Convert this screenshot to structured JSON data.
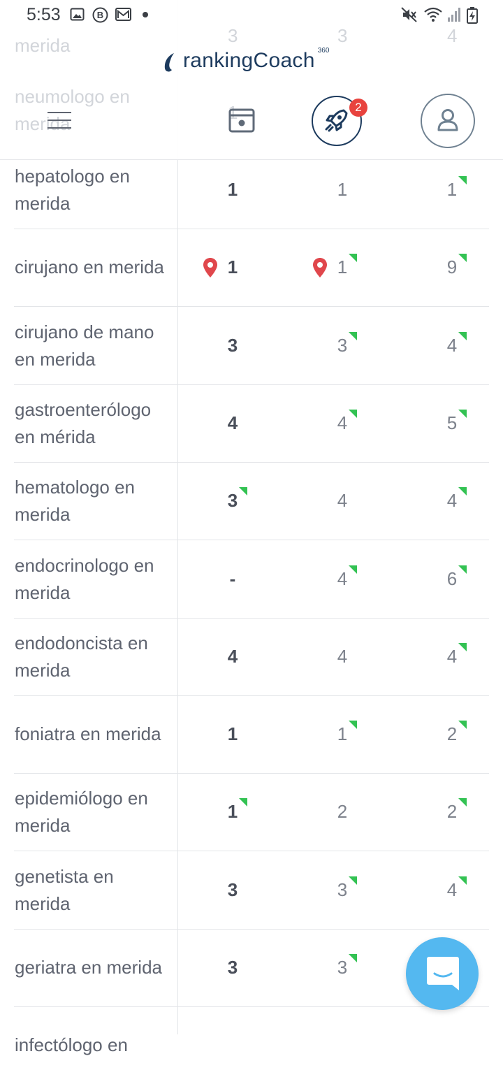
{
  "status_bar": {
    "time": "5:53"
  },
  "header": {
    "logo_text": "rankingCoach",
    "logo_sup": "360",
    "notification_count": "2"
  },
  "ghost_rows": [
    {
      "keyword": "merida",
      "c1": "3",
      "c2": "3",
      "c3": "4"
    },
    {
      "keyword": "neumologo en",
      "keyword2": "merida",
      "c1": "1"
    }
  ],
  "rows": [
    {
      "keyword": "hepatologo en merida",
      "c1": "1",
      "c2": "1",
      "c3": "1",
      "c1_flag": false,
      "c2_flag": false,
      "c3_flag": true,
      "pins": false
    },
    {
      "keyword": "cirujano en merida",
      "c1": "1",
      "c2": "1",
      "c3": "9",
      "c1_flag": false,
      "c2_flag": true,
      "c3_flag": true,
      "pins": true
    },
    {
      "keyword": "cirujano de mano en merida",
      "c1": "3",
      "c2": "3",
      "c3": "4",
      "c1_flag": false,
      "c2_flag": true,
      "c3_flag": true,
      "pins": false
    },
    {
      "keyword": "gastroenterólogo en mérida",
      "c1": "4",
      "c2": "4",
      "c3": "5",
      "c1_flag": false,
      "c2_flag": true,
      "c3_flag": true,
      "pins": false
    },
    {
      "keyword": "hematologo en merida",
      "c1": "3",
      "c2": "4",
      "c3": "4",
      "c1_flag": true,
      "c2_flag": false,
      "c3_flag": true,
      "pins": false
    },
    {
      "keyword": "endocrinologo en merida",
      "c1": "-",
      "c2": "4",
      "c3": "6",
      "c1_flag": false,
      "c2_flag": true,
      "c3_flag": true,
      "pins": false
    },
    {
      "keyword": "endodoncista en merida",
      "c1": "4",
      "c2": "4",
      "c3": "4",
      "c1_flag": false,
      "c2_flag": false,
      "c3_flag": true,
      "pins": false
    },
    {
      "keyword": "foniatra en merida",
      "c1": "1",
      "c2": "1",
      "c3": "2",
      "c1_flag": false,
      "c2_flag": true,
      "c3_flag": true,
      "pins": false
    },
    {
      "keyword": "epidemiólogo en merida",
      "c1": "1",
      "c2": "2",
      "c3": "2",
      "c1_flag": true,
      "c2_flag": false,
      "c3_flag": true,
      "pins": false
    },
    {
      "keyword": "genetista en merida",
      "c1": "3",
      "c2": "3",
      "c3": "4",
      "c1_flag": false,
      "c2_flag": true,
      "c3_flag": true,
      "pins": false
    },
    {
      "keyword": "geriatra en merida",
      "c1": "3",
      "c2": "3",
      "c3": "",
      "c1_flag": false,
      "c2_flag": true,
      "c3_flag": false,
      "pins": false
    },
    {
      "keyword": "infectólogo en",
      "c1": "",
      "c2": "",
      "c3": "",
      "c1_flag": false,
      "c2_flag": false,
      "c3_flag": false,
      "pins": false
    }
  ],
  "colors": {
    "brand_navy": "#1d3b5e",
    "up_flag": "#33c253",
    "pin": "#e0474c",
    "chat": "#54b8f0",
    "badge": "#e8433e"
  }
}
